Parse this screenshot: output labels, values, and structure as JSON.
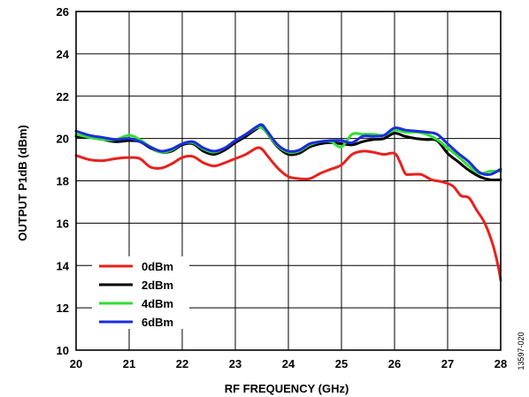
{
  "chart_data": {
    "type": "line",
    "title": "",
    "xlabel": "RF FREQUENCY (GHz)",
    "ylabel": "OUTPUT P1dB (dBm)",
    "xlim": [
      20,
      28
    ],
    "ylim": [
      10,
      26
    ],
    "x_ticks": [
      "20",
      "21",
      "22",
      "23",
      "24",
      "25",
      "26",
      "27",
      "28"
    ],
    "y_ticks": [
      "10",
      "12",
      "14",
      "16",
      "18",
      "20",
      "22",
      "24",
      "26"
    ],
    "grid": true,
    "legend_position": "bottom-left",
    "figure_id": "13597-020",
    "series": [
      {
        "name": "0dBm",
        "color": "#e8211d",
        "x": [
          20.0,
          20.25,
          20.5,
          20.75,
          21.0,
          21.2,
          21.4,
          21.6,
          21.8,
          22.0,
          22.2,
          22.4,
          22.6,
          22.8,
          23.0,
          23.2,
          23.4,
          23.5,
          23.6,
          23.8,
          24.0,
          24.2,
          24.4,
          24.6,
          24.8,
          25.0,
          25.2,
          25.4,
          25.6,
          25.8,
          26.0,
          26.1,
          26.2,
          26.3,
          26.5,
          26.7,
          26.9,
          27.1,
          27.25,
          27.4,
          27.55,
          27.7,
          27.85,
          27.95,
          28.0
        ],
        "y": [
          19.2,
          19.0,
          18.95,
          19.05,
          19.1,
          19.05,
          18.65,
          18.6,
          18.8,
          19.1,
          19.15,
          18.85,
          18.7,
          18.85,
          19.05,
          19.25,
          19.55,
          19.5,
          19.2,
          18.6,
          18.2,
          18.1,
          18.1,
          18.35,
          18.55,
          18.75,
          19.25,
          19.4,
          19.35,
          19.25,
          19.3,
          18.9,
          18.35,
          18.3,
          18.3,
          18.05,
          17.95,
          17.75,
          17.3,
          17.2,
          16.6,
          16.0,
          15.0,
          14.0,
          13.3
        ]
      },
      {
        "name": "2dBm",
        "color": "#000000",
        "x": [
          20.0,
          20.25,
          20.5,
          20.75,
          21.0,
          21.2,
          21.4,
          21.6,
          21.8,
          22.0,
          22.2,
          22.4,
          22.6,
          22.8,
          23.0,
          23.2,
          23.4,
          23.5,
          23.6,
          23.8,
          24.0,
          24.2,
          24.4,
          24.6,
          24.8,
          25.0,
          25.2,
          25.4,
          25.6,
          25.8,
          26.0,
          26.2,
          26.4,
          26.6,
          26.8,
          27.0,
          27.2,
          27.4,
          27.6,
          27.8,
          28.0
        ],
        "y": [
          20.1,
          20.05,
          19.95,
          19.85,
          19.9,
          19.85,
          19.55,
          19.35,
          19.4,
          19.7,
          19.75,
          19.4,
          19.25,
          19.45,
          19.8,
          20.1,
          20.45,
          20.55,
          20.25,
          19.6,
          19.25,
          19.3,
          19.6,
          19.75,
          19.8,
          19.75,
          19.7,
          19.85,
          19.95,
          20.0,
          20.25,
          20.1,
          20.0,
          19.95,
          19.9,
          19.3,
          18.9,
          18.5,
          18.2,
          18.05,
          18.05
        ]
      },
      {
        "name": "4dBm",
        "color": "#33dd33",
        "x": [
          20.0,
          20.25,
          20.5,
          20.75,
          21.0,
          21.2,
          21.4,
          21.6,
          21.8,
          22.0,
          22.2,
          22.4,
          22.6,
          22.8,
          23.0,
          23.2,
          23.4,
          23.5,
          23.6,
          23.8,
          24.0,
          24.2,
          24.4,
          24.6,
          24.8,
          25.0,
          25.2,
          25.4,
          25.6,
          25.8,
          26.0,
          26.2,
          26.4,
          26.6,
          26.8,
          27.0,
          27.2,
          27.4,
          27.6,
          27.8,
          28.0
        ],
        "y": [
          20.2,
          20.05,
          19.95,
          19.95,
          20.15,
          19.95,
          19.6,
          19.35,
          19.45,
          19.75,
          19.8,
          19.5,
          19.35,
          19.55,
          19.9,
          20.2,
          20.5,
          20.5,
          20.25,
          19.65,
          19.35,
          19.4,
          19.7,
          19.85,
          19.85,
          19.6,
          20.2,
          20.2,
          20.2,
          20.15,
          20.4,
          20.3,
          20.3,
          20.2,
          19.95,
          19.55,
          19.15,
          18.7,
          18.35,
          18.45,
          18.45
        ]
      },
      {
        "name": "6dBm",
        "color": "#1a2de0",
        "x": [
          20.0,
          20.25,
          20.5,
          20.75,
          21.0,
          21.2,
          21.4,
          21.6,
          21.8,
          22.0,
          22.2,
          22.4,
          22.6,
          22.8,
          23.0,
          23.2,
          23.4,
          23.5,
          23.6,
          23.8,
          24.0,
          24.2,
          24.4,
          24.6,
          24.8,
          25.0,
          25.2,
          25.4,
          25.6,
          25.8,
          26.0,
          26.2,
          26.4,
          26.6,
          26.8,
          27.0,
          27.2,
          27.4,
          27.6,
          27.8,
          28.0
        ],
        "y": [
          20.35,
          20.15,
          20.05,
          19.95,
          20.0,
          19.85,
          19.6,
          19.4,
          19.5,
          19.75,
          19.85,
          19.55,
          19.4,
          19.55,
          19.9,
          20.2,
          20.55,
          20.65,
          20.35,
          19.7,
          19.4,
          19.45,
          19.75,
          19.85,
          19.9,
          19.9,
          19.8,
          20.1,
          20.1,
          20.15,
          20.5,
          20.4,
          20.35,
          20.3,
          20.2,
          19.75,
          19.3,
          18.9,
          18.4,
          18.3,
          18.55
        ]
      }
    ]
  }
}
